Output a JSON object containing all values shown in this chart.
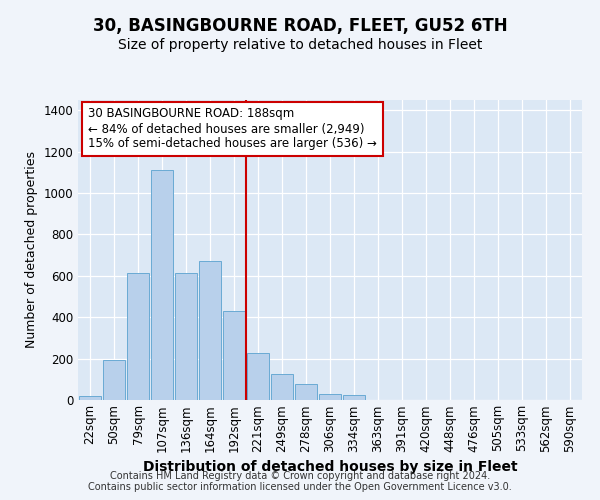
{
  "title1": "30, BASINGBOURNE ROAD, FLEET, GU52 6TH",
  "title2": "Size of property relative to detached houses in Fleet",
  "xlabel": "Distribution of detached houses by size in Fleet",
  "ylabel": "Number of detached properties",
  "categories": [
    "22sqm",
    "50sqm",
    "79sqm",
    "107sqm",
    "136sqm",
    "164sqm",
    "192sqm",
    "221sqm",
    "249sqm",
    "278sqm",
    "306sqm",
    "334sqm",
    "363sqm",
    "391sqm",
    "420sqm",
    "448sqm",
    "476sqm",
    "505sqm",
    "533sqm",
    "562sqm",
    "590sqm"
  ],
  "values": [
    20,
    195,
    615,
    1110,
    615,
    670,
    430,
    225,
    125,
    75,
    30,
    25,
    0,
    0,
    0,
    0,
    0,
    0,
    0,
    0,
    0
  ],
  "bar_color": "#b8d0eb",
  "bar_edge_color": "#6aaad4",
  "vline_x_pos": 6.5,
  "vline_color": "#cc0000",
  "annotation_text": "30 BASINGBOURNE ROAD: 188sqm\n← 84% of detached houses are smaller (2,949)\n15% of semi-detached houses are larger (536) →",
  "annotation_box_facecolor": "#ffffff",
  "annotation_box_edgecolor": "#cc0000",
  "footer": "Contains HM Land Registry data © Crown copyright and database right 2024.\nContains public sector information licensed under the Open Government Licence v3.0.",
  "ylim": [
    0,
    1450
  ],
  "fig_facecolor": "#f0f4fa",
  "ax_facecolor": "#dce8f5",
  "grid_color": "#ffffff",
  "title1_fontsize": 12,
  "title2_fontsize": 10,
  "xlabel_fontsize": 10,
  "ylabel_fontsize": 9,
  "footer_fontsize": 7,
  "tick_fontsize": 8.5,
  "annot_fontsize": 8.5
}
